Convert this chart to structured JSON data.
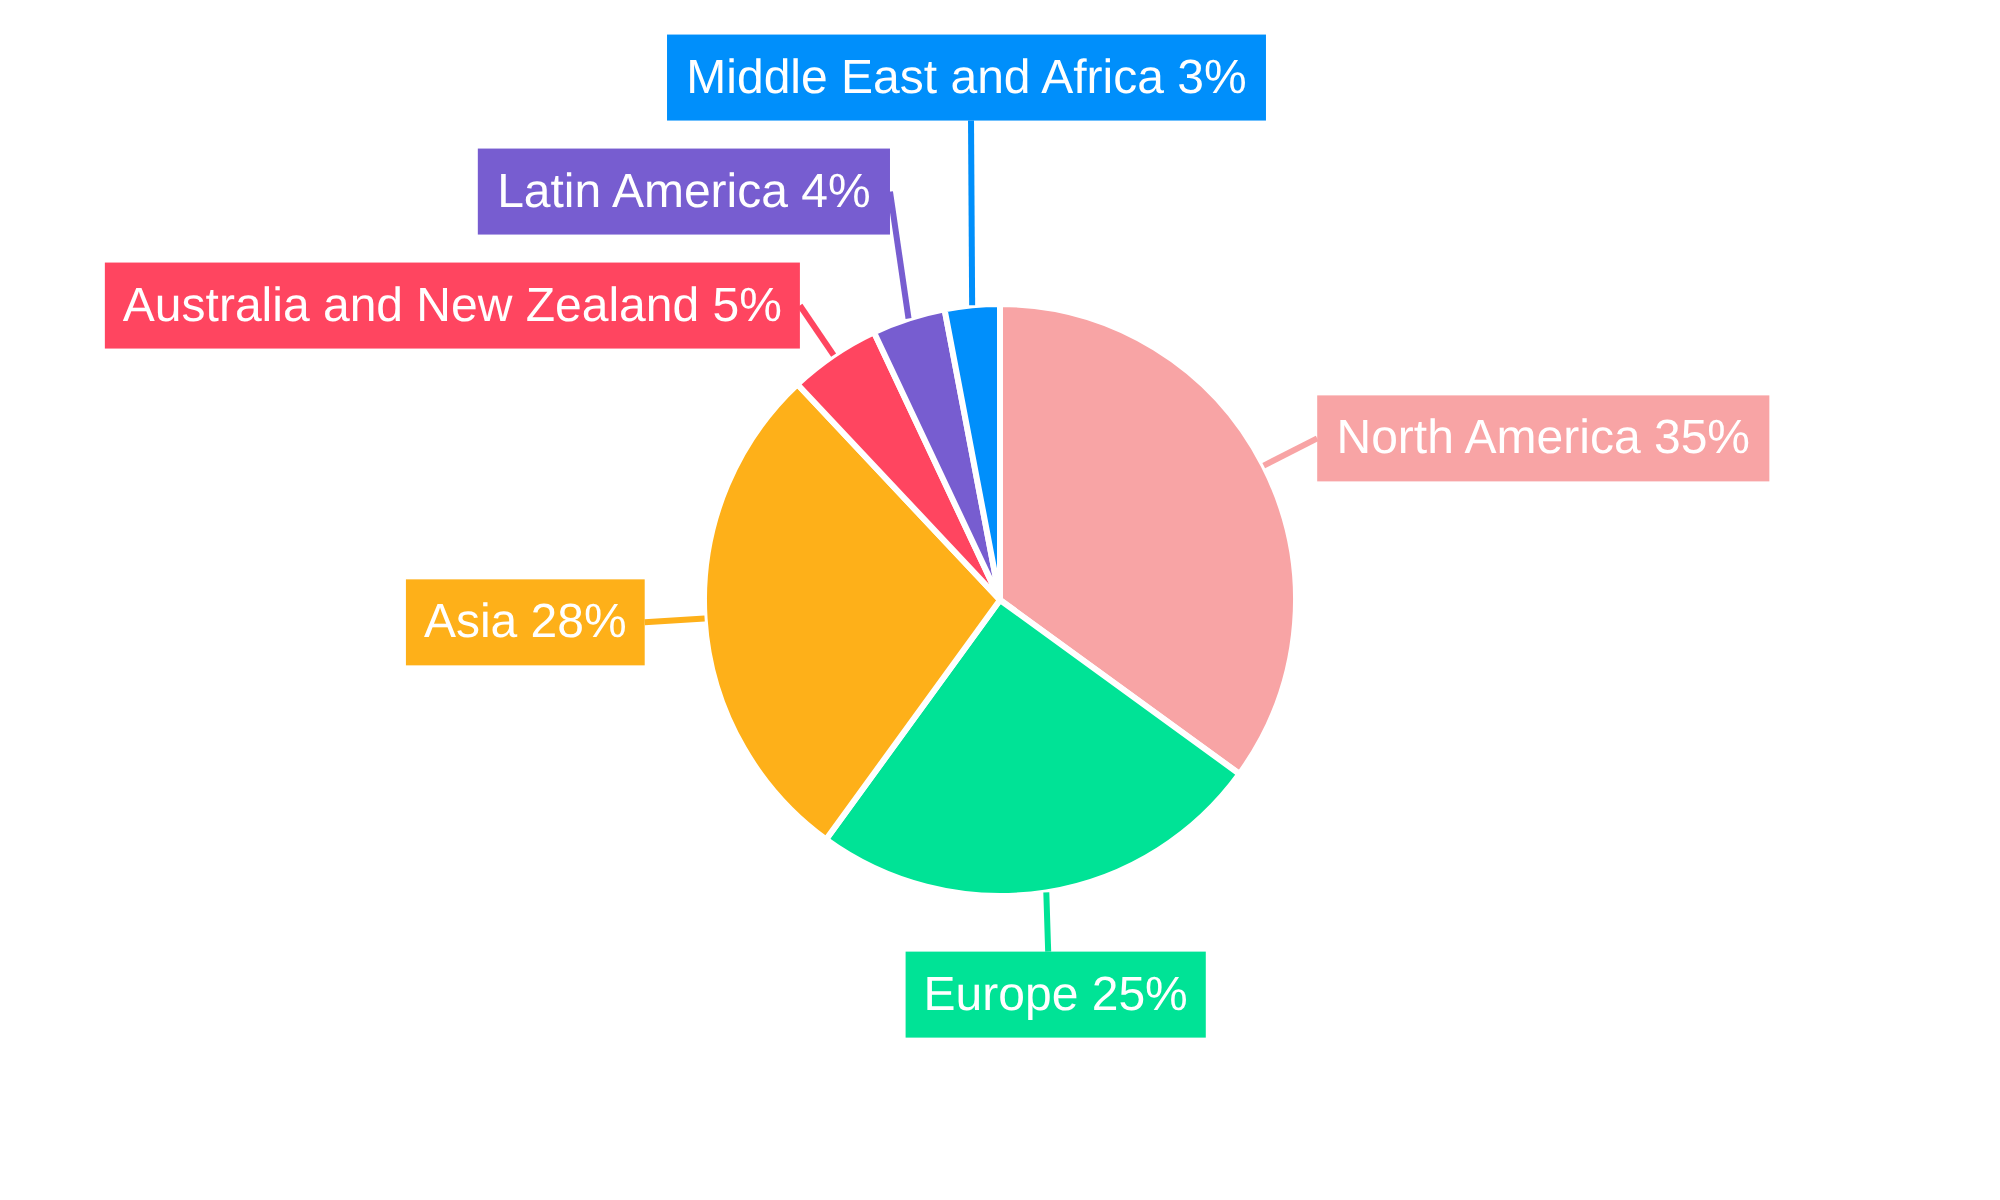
{
  "chart_data": {
    "type": "pie",
    "categories": [
      "North America",
      "Europe",
      "Asia",
      "Australia and New Zealand",
      "Latin America",
      "Middle East and Africa"
    ],
    "values": [
      35,
      25,
      28,
      5,
      4,
      3
    ],
    "colors": [
      "#f8a4a5",
      "#00e396",
      "#feb019",
      "#ff4560",
      "#775dd0",
      "#008ffb"
    ],
    "value_labels": [
      "35%",
      "25%",
      "28%",
      "5%",
      "4%",
      "3%"
    ]
  }
}
